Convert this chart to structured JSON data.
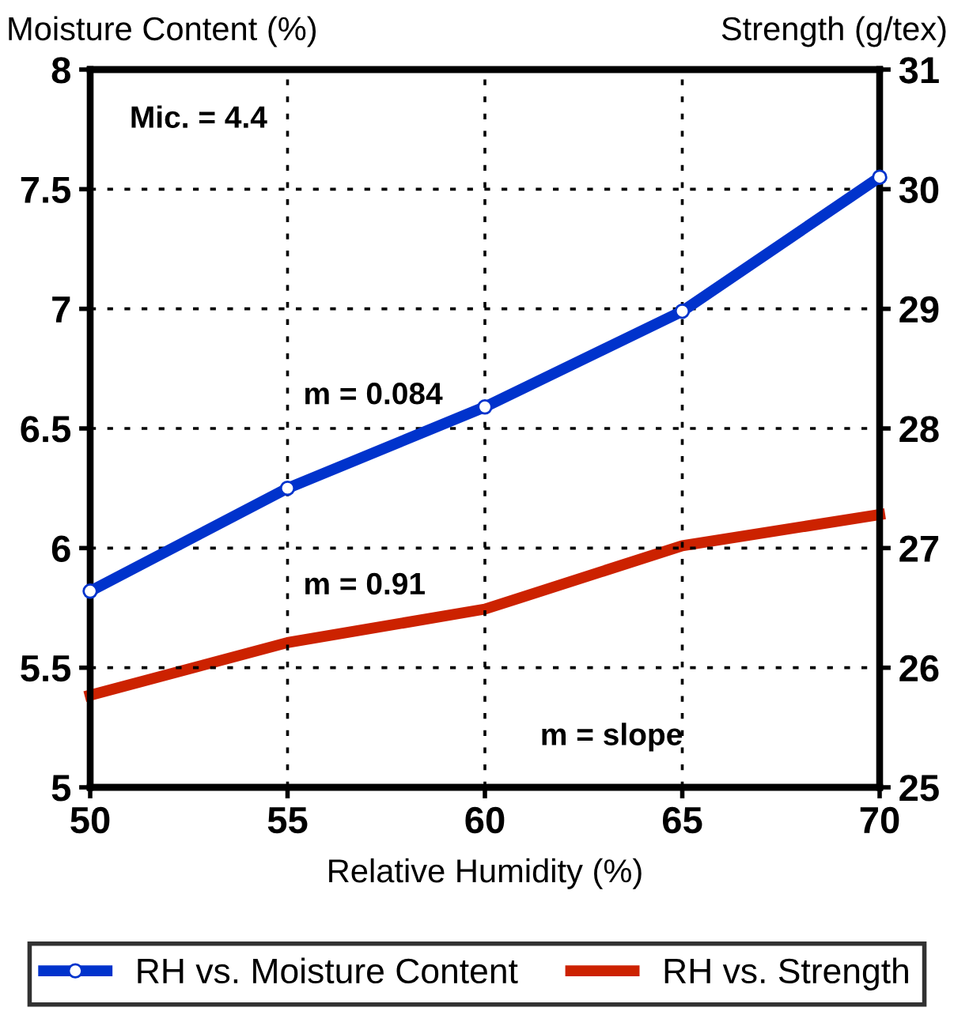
{
  "chart_data": {
    "type": "line",
    "xlabel": "Relative Humidity (%)",
    "ylabel": "Moisture Content (%)",
    "y2label": "Strength (g/tex)",
    "x": [
      50,
      55,
      60,
      65,
      70
    ],
    "series": [
      {
        "name": "RH vs. Moisture Content",
        "color": "#0033cc",
        "values": [
          5.82,
          6.25,
          6.59,
          6.99,
          7.55
        ],
        "marker": "circle"
      },
      {
        "name": "RH vs. Strength",
        "color": "#cc2200",
        "values": [
          25.77,
          26.21,
          26.49,
          27.02,
          27.28
        ],
        "axis": "y2",
        "marker": "none"
      }
    ],
    "xlim": [
      50,
      70
    ],
    "xticks": [
      50,
      55,
      60,
      65,
      70
    ],
    "ylim": [
      5,
      8
    ],
    "yticks": [
      5,
      5.5,
      6,
      6.5,
      7,
      7.5,
      8
    ],
    "y2lim": [
      25,
      31
    ],
    "y2ticks": [
      25,
      26,
      27,
      28,
      29,
      30,
      31
    ],
    "grid": true,
    "legend": "bottom",
    "line_style": "solid",
    "annotations": [
      "Mic. = 4.4",
      "m = 0.084",
      "m = 0.91",
      "m = slope"
    ]
  }
}
